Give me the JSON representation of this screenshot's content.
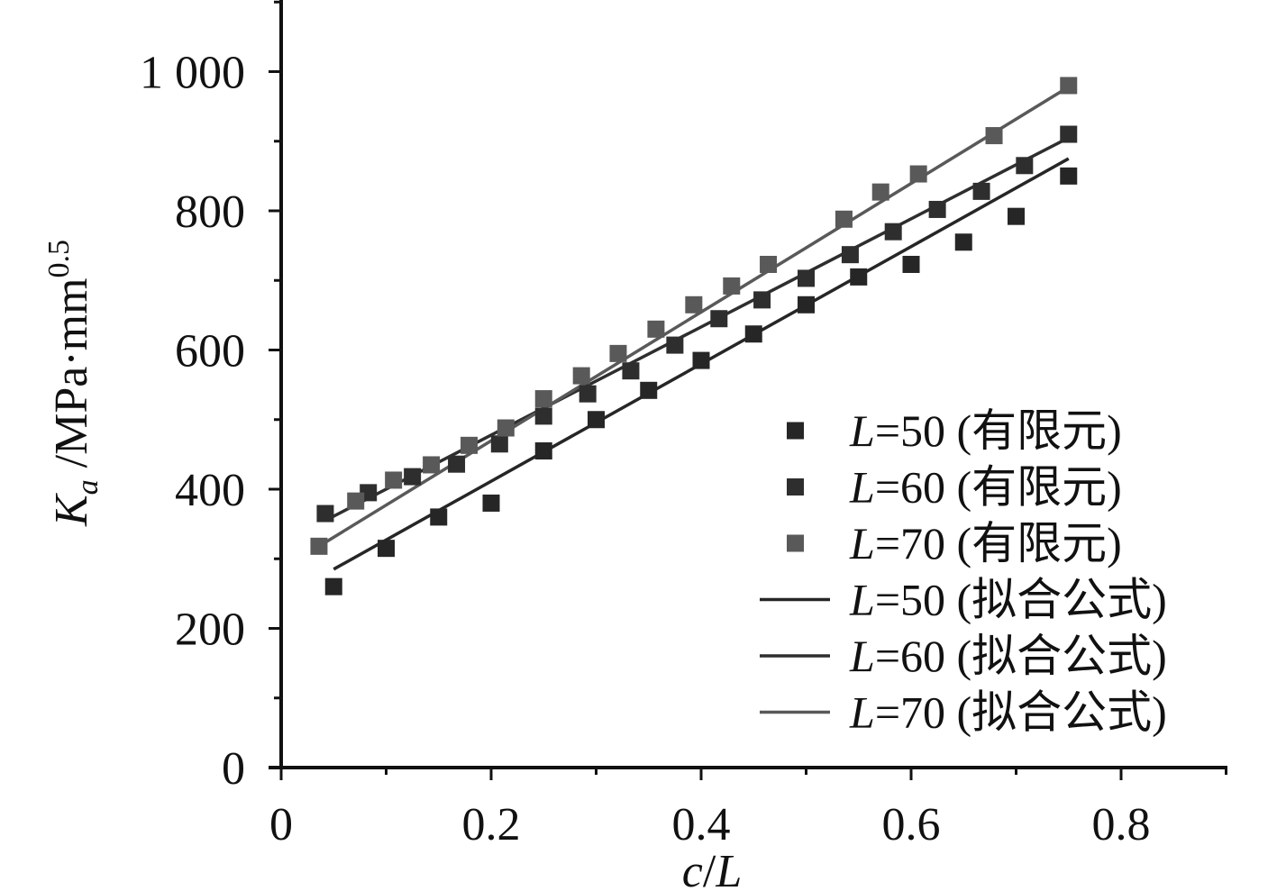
{
  "chart_data": {
    "type": "scatter",
    "xlabel_parts": [
      "c",
      "/",
      "L"
    ],
    "ylabel_parts": [
      "K",
      "a",
      " /MPa·mm",
      "0.5"
    ],
    "xlim": [
      0,
      0.9
    ],
    "ylim": [
      0,
      1100
    ],
    "x_ticks": [
      0,
      0.2,
      0.4,
      0.6,
      0.8
    ],
    "x_tick_labels": [
      "0",
      "0.2",
      "0.4",
      "0.6",
      "0.8"
    ],
    "y_ticks": [
      0,
      200,
      400,
      600,
      800,
      1000
    ],
    "y_tick_labels": [
      "0",
      "200",
      "400",
      "600",
      "800",
      "1 000"
    ],
    "grid": false,
    "legend_position": "bottom-right",
    "series": [
      {
        "name_italic": "L",
        "name_rest": "=50 (有限元)",
        "kind": "points",
        "color": "#262626",
        "points": [
          [
            0.05,
            260
          ],
          [
            0.1,
            315
          ],
          [
            0.15,
            360
          ],
          [
            0.2,
            380
          ],
          [
            0.25,
            455
          ],
          [
            0.3,
            500
          ],
          [
            0.35,
            542
          ],
          [
            0.4,
            585
          ],
          [
            0.45,
            623
          ],
          [
            0.5,
            665
          ],
          [
            0.55,
            705
          ],
          [
            0.6,
            723
          ],
          [
            0.65,
            755
          ],
          [
            0.7,
            792
          ],
          [
            0.75,
            850
          ]
        ]
      },
      {
        "name_italic": "L",
        "name_rest": "=60 (有限元)",
        "kind": "points",
        "color": "#2e2e2e",
        "points": [
          [
            0.042,
            365
          ],
          [
            0.083,
            395
          ],
          [
            0.125,
            418
          ],
          [
            0.167,
            436
          ],
          [
            0.208,
            465
          ],
          [
            0.25,
            505
          ],
          [
            0.292,
            537
          ],
          [
            0.333,
            570
          ],
          [
            0.375,
            607
          ],
          [
            0.417,
            645
          ],
          [
            0.458,
            672
          ],
          [
            0.5,
            703
          ],
          [
            0.542,
            737
          ],
          [
            0.583,
            770
          ],
          [
            0.625,
            802
          ],
          [
            0.667,
            828
          ],
          [
            0.708,
            865
          ],
          [
            0.75,
            910
          ]
        ]
      },
      {
        "name_italic": "L",
        "name_rest": "=70 (有限元)",
        "kind": "points",
        "color": "#595959",
        "points": [
          [
            0.036,
            318
          ],
          [
            0.071,
            383
          ],
          [
            0.107,
            413
          ],
          [
            0.143,
            435
          ],
          [
            0.179,
            463
          ],
          [
            0.214,
            488
          ],
          [
            0.25,
            530
          ],
          [
            0.286,
            563
          ],
          [
            0.321,
            595
          ],
          [
            0.357,
            630
          ],
          [
            0.393,
            665
          ],
          [
            0.429,
            692
          ],
          [
            0.464,
            723
          ],
          [
            0.536,
            788
          ],
          [
            0.571,
            827
          ],
          [
            0.607,
            853
          ],
          [
            0.679,
            908
          ],
          [
            0.75,
            980
          ]
        ]
      },
      {
        "name_italic": "L",
        "name_rest": "=50 (拟合公式)",
        "kind": "line",
        "color": "#262626",
        "points": [
          [
            0.05,
            285
          ],
          [
            0.75,
            875
          ]
        ]
      },
      {
        "name_italic": "L",
        "name_rest": "=60 (拟合公式)",
        "kind": "line",
        "color": "#2e2e2e",
        "points": [
          [
            0.042,
            355
          ],
          [
            0.75,
            905
          ]
        ]
      },
      {
        "name_italic": "L",
        "name_rest": "=70 (拟合公式)",
        "kind": "line",
        "color": "#595959",
        "points": [
          [
            0.036,
            318
          ],
          [
            0.75,
            978
          ]
        ]
      }
    ]
  }
}
